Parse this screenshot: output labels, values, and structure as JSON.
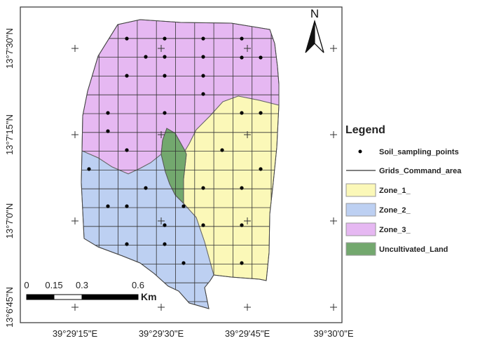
{
  "map": {
    "north_label": "N",
    "x_ticks": [
      "39°29'15\"E",
      "39°29'30\"E",
      "39°29'45\"E",
      "39°30'0\"E"
    ],
    "y_ticks": [
      "13°7'30\"N",
      "13°7'15\"N",
      "13°7'0\"N",
      "13°6'45\"N"
    ],
    "legend": {
      "title": "Legend",
      "items": [
        {
          "label": "Soil_sampling_points",
          "symbol": "point",
          "color": "#000000"
        },
        {
          "label": "Grids_Command_area",
          "symbol": "line",
          "color": "#000000"
        },
        {
          "label": "Zone_1_",
          "symbol": "fill",
          "color": "#FBF8B8"
        },
        {
          "label": "Zone_2_",
          "symbol": "fill",
          "color": "#BDD0F2"
        },
        {
          "label": "Zone_3_",
          "symbol": "fill",
          "color": "#E6B8F2"
        },
        {
          "label": "Uncultivated_Land",
          "symbol": "fill",
          "color": "#73A86E"
        }
      ]
    },
    "scale_bar": {
      "labels": [
        "0",
        "0.15",
        "0.3",
        "0.6"
      ],
      "unit": "Km"
    }
  }
}
